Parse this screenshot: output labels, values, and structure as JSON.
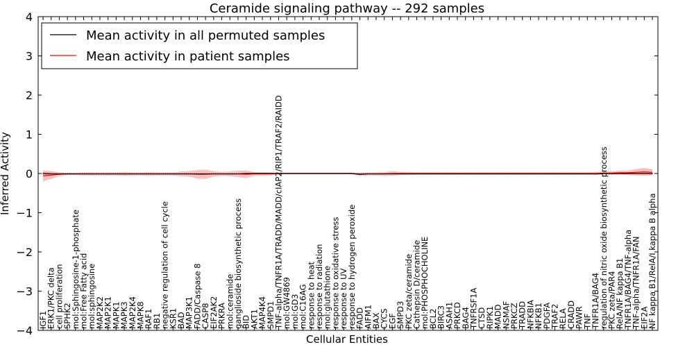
{
  "chart_data": {
    "type": "line",
    "title": "Ceramide signaling pathway -- 292 samples",
    "xlabel": "Cellular Entities",
    "ylabel": "Inferred Activity",
    "ylim": [
      -4,
      4
    ],
    "yticks": [
      -4,
      -3,
      -2,
      -1,
      0,
      1,
      2,
      3,
      4
    ],
    "grid": false,
    "legend_position": "top-left",
    "categories": [
      "IGF1",
      "ERK1/PKC delta",
      "cell proliferation",
      "SPHK2",
      "mol:Sphingosine-1-phosphate",
      "mol:Free Fatty acid",
      "mol:sphingosine",
      "MAP2K2",
      "MAP2K1",
      "MAPK1",
      "MAPK3",
      "MAP2K4",
      "MAPK8",
      "RAF1",
      "RB1",
      "negative regulation of cell cycle",
      "KSR1",
      "BAD",
      "MAP3K1",
      "FADD/Caspase 8",
      "CASP8",
      "EIF2AK2",
      "PRKRA",
      "mol:ceramide",
      "ganglioside biosynthetic process",
      "BID",
      "AKT1",
      "MAP4K4",
      "SMPD1",
      "TNF-alpha/TNFR1A/TRADD/MADD/cIAP2/RIP1/TRAF2/RAIDD",
      "mol:GW4869",
      "mol:GD3",
      "mol:C16AG",
      "response to heat",
      "response to radiation",
      "mol:glutathione",
      "response to oxidative stress",
      "response to UV",
      "response to hydrogen peroxide",
      "FADD",
      "AIFM1",
      "BAX",
      "CYCS",
      "EGF",
      "SMPD3",
      "PKC zeta/ceramide",
      "Cathepsin D/ceramide",
      "mol:PHOSPHOCHOLINE",
      "BCL2",
      "BIRC3",
      "ASAH1",
      "PRKCD",
      "BAG4",
      "TNFRSF1A",
      "CTSD",
      "RIPK1",
      "MADD",
      "NSMAF",
      "PRKCZ",
      "TRADD",
      "NFKBIA",
      "NFKB1",
      "PDGFA",
      "TRAF2",
      "RELA",
      "CRADD",
      "PAWR",
      "TNF",
      "TNFR1A/BAG4",
      "regulation of nitric oxide biosynthetic process",
      "PKC zeta/PAR4",
      "RelA/NF kappa B1",
      "TNFR1A/BAG4/TNF-alpha",
      "TNF-alpha/TNFR1A/FAN",
      "EIF2A",
      "NF kappa B1/RelA/I kappa B alpha"
    ],
    "series": [
      {
        "name": "Mean activity in all permuted samples",
        "color": "#000000",
        "values": [
          0.0,
          -0.01,
          -0.01,
          -0.01,
          -0.01,
          -0.01,
          -0.01,
          -0.01,
          -0.01,
          -0.01,
          -0.01,
          -0.01,
          -0.01,
          -0.01,
          -0.01,
          -0.01,
          -0.01,
          -0.01,
          -0.01,
          -0.01,
          -0.01,
          -0.01,
          -0.01,
          -0.01,
          -0.01,
          0.0,
          0.0,
          0.0,
          0.0,
          0.0,
          0.0,
          0.0,
          0.0,
          0.0,
          0.0,
          0.0,
          0.0,
          0.0,
          0.0,
          -0.02,
          -0.01,
          -0.01,
          -0.01,
          -0.01,
          -0.01,
          -0.01,
          -0.01,
          -0.01,
          -0.01,
          -0.01,
          -0.01,
          -0.01,
          -0.01,
          -0.01,
          -0.01,
          -0.01,
          -0.01,
          -0.01,
          -0.01,
          -0.01,
          -0.01,
          -0.01,
          -0.01,
          -0.01,
          -0.01,
          -0.01,
          -0.01,
          -0.01,
          -0.01,
          0.0,
          0.0,
          0.0,
          0.0,
          0.0,
          0.0,
          0.0
        ],
        "band": [
          0.04,
          0.04,
          0.02,
          0.02,
          0.02,
          0.02,
          0.02,
          0.02,
          0.02,
          0.02,
          0.02,
          0.02,
          0.02,
          0.02,
          0.02,
          0.02,
          0.02,
          0.02,
          0.02,
          0.02,
          0.02,
          0.02,
          0.02,
          0.02,
          0.02,
          0.02,
          0.02,
          0.02,
          0.02,
          0.02,
          0.02,
          0.02,
          0.02,
          0.02,
          0.02,
          0.02,
          0.02,
          0.02,
          0.02,
          0.02,
          0.02,
          0.02,
          0.02,
          0.02,
          0.02,
          0.02,
          0.02,
          0.02,
          0.02,
          0.02,
          0.02,
          0.02,
          0.02,
          0.02,
          0.02,
          0.02,
          0.02,
          0.02,
          0.02,
          0.02,
          0.02,
          0.02,
          0.02,
          0.02,
          0.02,
          0.02,
          0.02,
          0.02,
          0.02,
          0.02,
          0.02,
          0.02,
          0.02,
          0.02,
          0.02,
          0.02
        ]
      },
      {
        "name": "Mean activity in patient samples",
        "color": "#ff0000",
        "values": [
          -0.06,
          -0.04,
          -0.02,
          -0.01,
          -0.01,
          -0.01,
          -0.01,
          -0.01,
          -0.01,
          -0.01,
          -0.01,
          -0.01,
          -0.01,
          -0.01,
          -0.01,
          -0.01,
          -0.01,
          -0.01,
          -0.01,
          -0.02,
          -0.02,
          -0.01,
          -0.01,
          -0.01,
          -0.01,
          -0.02,
          -0.01,
          -0.01,
          -0.01,
          0.0,
          0.0,
          0.0,
          0.0,
          0.0,
          0.0,
          0.0,
          0.0,
          0.0,
          0.0,
          -0.02,
          -0.01,
          -0.01,
          -0.01,
          0.0,
          0.0,
          0.0,
          0.0,
          0.0,
          0.0,
          0.0,
          0.0,
          0.0,
          0.0,
          0.0,
          0.0,
          0.0,
          0.0,
          0.0,
          0.0,
          0.0,
          0.0,
          0.0,
          0.0,
          0.0,
          0.0,
          0.0,
          0.0,
          0.0,
          0.0,
          0.01,
          0.01,
          0.02,
          0.02,
          0.03,
          0.04,
          0.03
        ],
        "band": [
          0.14,
          0.1,
          0.05,
          0.03,
          0.03,
          0.04,
          0.04,
          0.04,
          0.04,
          0.04,
          0.05,
          0.04,
          0.04,
          0.05,
          0.04,
          0.04,
          0.04,
          0.06,
          0.07,
          0.11,
          0.12,
          0.07,
          0.05,
          0.06,
          0.08,
          0.1,
          0.05,
          0.05,
          0.04,
          0.02,
          0.02,
          0.02,
          0.02,
          0.02,
          0.02,
          0.02,
          0.02,
          0.02,
          0.02,
          0.04,
          0.04,
          0.04,
          0.05,
          0.06,
          0.04,
          0.04,
          0.03,
          0.03,
          0.03,
          0.03,
          0.03,
          0.03,
          0.03,
          0.03,
          0.03,
          0.03,
          0.03,
          0.03,
          0.03,
          0.03,
          0.03,
          0.03,
          0.03,
          0.03,
          0.03,
          0.03,
          0.03,
          0.03,
          0.04,
          0.04,
          0.05,
          0.05,
          0.06,
          0.08,
          0.1,
          0.08
        ]
      }
    ]
  }
}
